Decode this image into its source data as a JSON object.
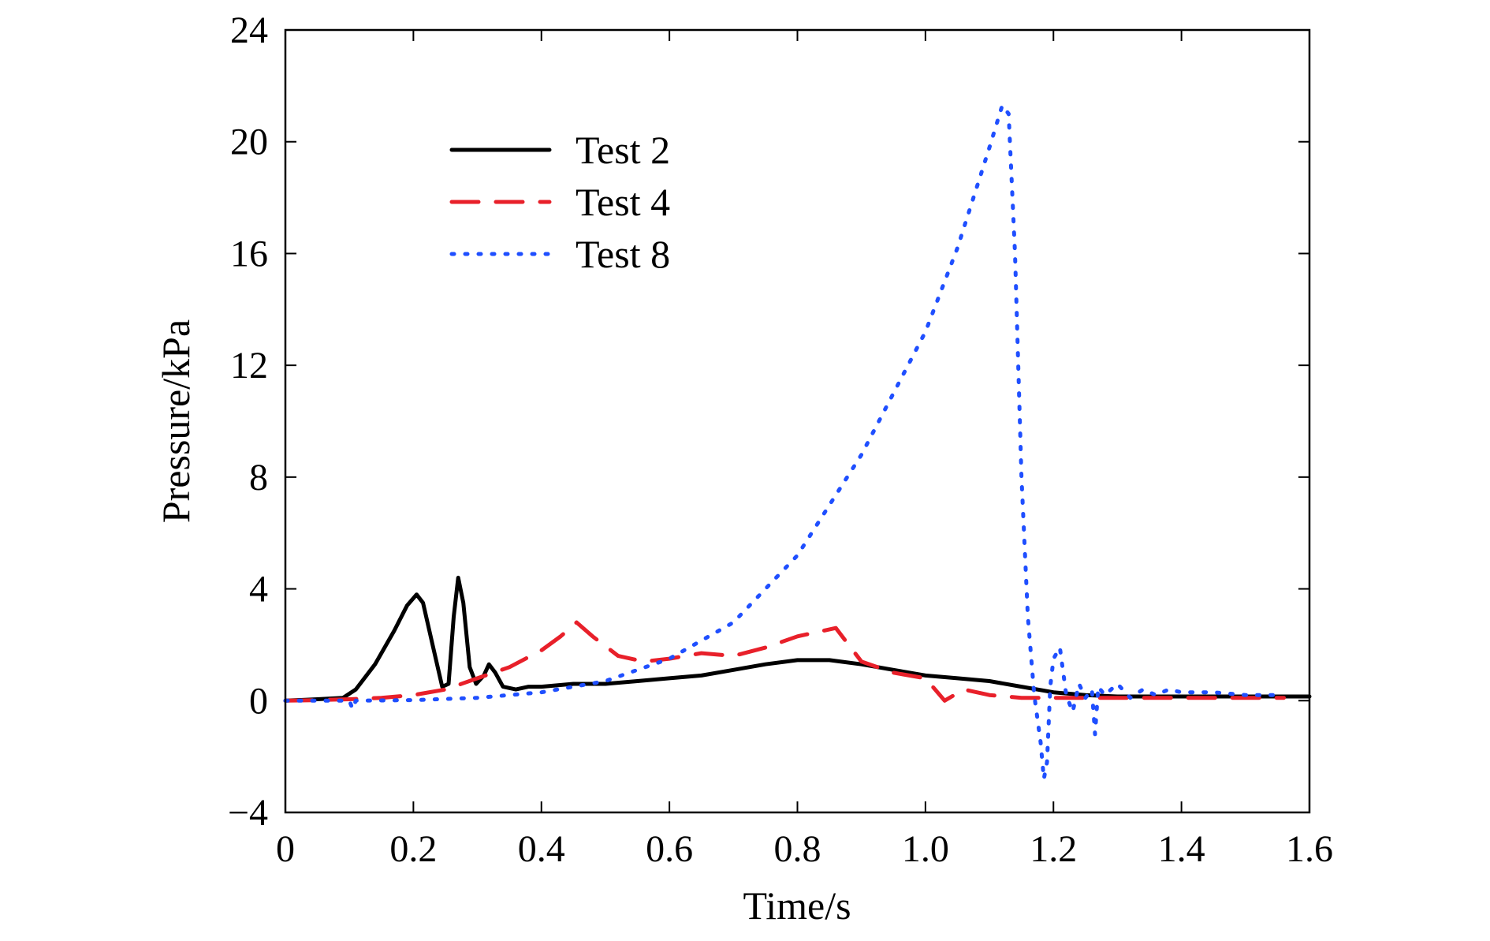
{
  "chart_data": {
    "type": "line",
    "title": "",
    "xlabel": "Time/s",
    "ylabel": "Pressure/kPa",
    "xlim": [
      0,
      1.6
    ],
    "ylim": [
      -4,
      24
    ],
    "xticks": [
      0,
      0.2,
      0.4,
      0.6,
      0.8,
      1.0,
      1.2,
      1.4,
      1.6
    ],
    "xtick_labels": [
      "0",
      "0.2",
      "0.4",
      "0.6",
      "0.8",
      "1.0",
      "1.2",
      "1.4",
      "1.6"
    ],
    "yticks": [
      -4,
      0,
      4,
      8,
      12,
      16,
      20,
      24
    ],
    "ytick_labels": [
      "−4",
      "0",
      "4",
      "8",
      "12",
      "16",
      "20",
      "24"
    ],
    "grid": false,
    "legend_position": "top-left",
    "series": [
      {
        "name": "Test 2",
        "color": "#000000",
        "style": "solid",
        "x": [
          0,
          0.05,
          0.09,
          0.11,
          0.14,
          0.17,
          0.19,
          0.205,
          0.215,
          0.23,
          0.245,
          0.255,
          0.263,
          0.27,
          0.278,
          0.288,
          0.298,
          0.31,
          0.318,
          0.328,
          0.34,
          0.36,
          0.38,
          0.4,
          0.45,
          0.5,
          0.55,
          0.6,
          0.65,
          0.7,
          0.75,
          0.8,
          0.85,
          0.9,
          0.95,
          1.0,
          1.05,
          1.1,
          1.15,
          1.2,
          1.25,
          1.3,
          1.35,
          1.4,
          1.45,
          1.5,
          1.55,
          1.6
        ],
        "y": [
          0,
          0.05,
          0.1,
          0.4,
          1.3,
          2.5,
          3.4,
          3.8,
          3.5,
          2.0,
          0.5,
          0.6,
          3.0,
          4.4,
          3.5,
          1.2,
          0.6,
          0.9,
          1.3,
          1.0,
          0.5,
          0.4,
          0.5,
          0.5,
          0.6,
          0.6,
          0.7,
          0.8,
          0.9,
          1.1,
          1.3,
          1.45,
          1.45,
          1.3,
          1.1,
          0.9,
          0.8,
          0.7,
          0.5,
          0.3,
          0.2,
          0.15,
          0.15,
          0.15,
          0.15,
          0.15,
          0.15,
          0.15
        ]
      },
      {
        "name": "Test 4",
        "color": "#e8202a",
        "style": "dashed",
        "x": [
          0,
          0.05,
          0.1,
          0.15,
          0.2,
          0.25,
          0.3,
          0.35,
          0.4,
          0.43,
          0.455,
          0.48,
          0.52,
          0.56,
          0.6,
          0.65,
          0.7,
          0.75,
          0.8,
          0.86,
          0.88,
          0.9,
          0.95,
          1.0,
          1.03,
          1.06,
          1.1,
          1.15,
          1.2,
          1.25,
          1.3,
          1.4,
          1.5,
          1.56
        ],
        "y": [
          0,
          0.02,
          0.05,
          0.1,
          0.2,
          0.4,
          0.8,
          1.2,
          1.8,
          2.3,
          2.8,
          2.3,
          1.6,
          1.4,
          1.5,
          1.7,
          1.6,
          1.9,
          2.3,
          2.6,
          2.0,
          1.4,
          1.0,
          0.8,
          0.0,
          0.4,
          0.2,
          0.1,
          0.1,
          0.1,
          0.1,
          0.1,
          0.1,
          0.1
        ]
      },
      {
        "name": "Test 8",
        "color": "#1f4fff",
        "style": "dotted",
        "x": [
          0,
          0.1,
          0.105,
          0.11,
          0.2,
          0.3,
          0.4,
          0.5,
          0.6,
          0.7,
          0.8,
          0.9,
          1.0,
          1.05,
          1.1,
          1.12,
          1.13,
          1.14,
          1.15,
          1.16,
          1.17,
          1.18,
          1.185,
          1.19,
          1.195,
          1.2,
          1.21,
          1.22,
          1.23,
          1.24,
          1.25,
          1.26,
          1.265,
          1.27,
          1.28,
          1.3,
          1.32,
          1.34,
          1.36,
          1.38,
          1.4,
          1.45,
          1.5,
          1.55
        ],
        "y": [
          0,
          0,
          -0.3,
          0,
          0.02,
          0.1,
          0.3,
          0.7,
          1.5,
          2.8,
          5.2,
          8.8,
          13.2,
          16.2,
          19.8,
          21.3,
          21.0,
          16.0,
          8.0,
          3.0,
          0.2,
          -1.5,
          -2.8,
          -2.2,
          0.5,
          1.5,
          1.9,
          0.2,
          -0.4,
          0.6,
          0.1,
          0.4,
          -1.2,
          0.5,
          0.2,
          0.6,
          0.1,
          0.4,
          0.2,
          0.4,
          0.3,
          0.3,
          0.2,
          0.2
        ]
      }
    ]
  }
}
